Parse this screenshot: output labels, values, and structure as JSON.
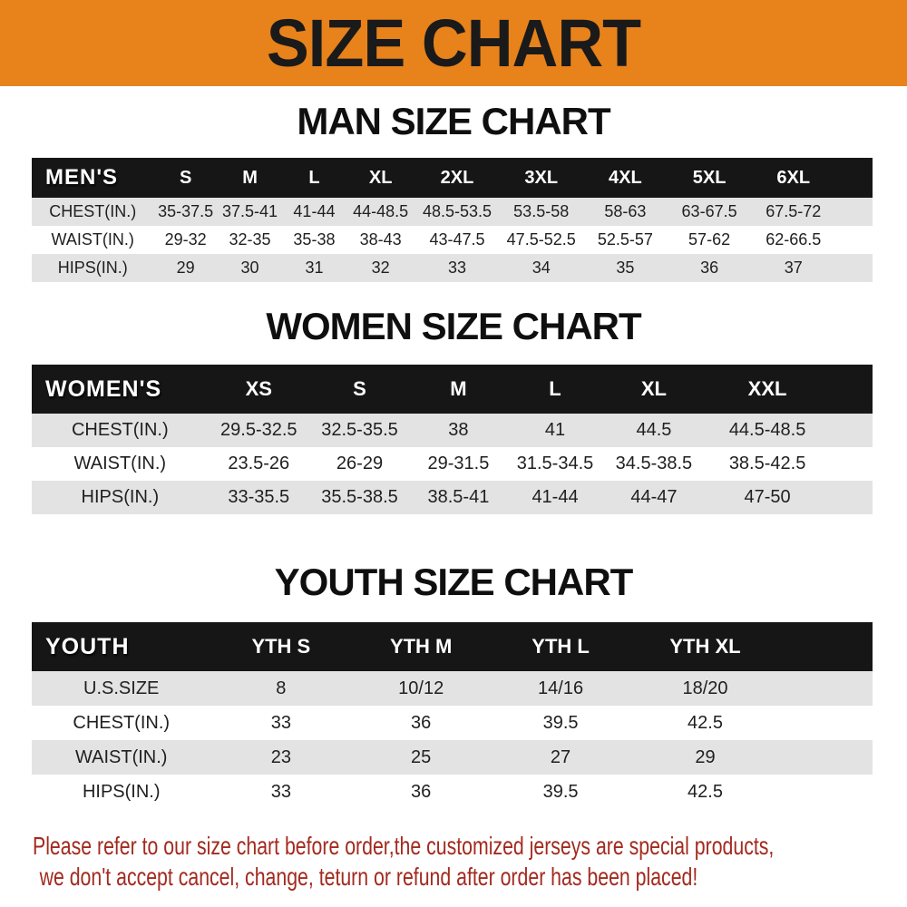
{
  "banner": {
    "title": "SIZE CHART"
  },
  "sections": [
    {
      "id": "men",
      "title": "MAN SIZE CHART",
      "header_label": "MEN'S",
      "columns": [
        "S",
        "M",
        "L",
        "XL",
        "2XL",
        "3XL",
        "4XL",
        "5XL",
        "6XL"
      ],
      "rows": [
        {
          "label": "CHEST(IN.)",
          "values": [
            "35-37.5",
            "37.5-41",
            "41-44",
            "44-48.5",
            "48.5-53.5",
            "53.5-58",
            "58-63",
            "63-67.5",
            "67.5-72"
          ]
        },
        {
          "label": "WAIST(IN.)",
          "values": [
            "29-32",
            "32-35",
            "35-38",
            "38-43",
            "43-47.5",
            "47.5-52.5",
            "52.5-57",
            "57-62",
            "62-66.5"
          ]
        },
        {
          "label": "HIPS(IN.)",
          "values": [
            "29",
            "30",
            "31",
            "32",
            "33",
            "34",
            "35",
            "36",
            "37"
          ]
        }
      ]
    },
    {
      "id": "women",
      "title": "WOMEN SIZE CHART",
      "header_label": "WOMEN'S",
      "columns": [
        "XS",
        "S",
        "M",
        "L",
        "XL",
        "XXL"
      ],
      "rows": [
        {
          "label": "CHEST(IN.)",
          "values": [
            "29.5-32.5",
            "32.5-35.5",
            "38",
            "41",
            "44.5",
            "44.5-48.5"
          ]
        },
        {
          "label": "WAIST(IN.)",
          "values": [
            "23.5-26",
            "26-29",
            "29-31.5",
            "31.5-34.5",
            "34.5-38.5",
            "38.5-42.5"
          ]
        },
        {
          "label": "HIPS(IN.)",
          "values": [
            "33-35.5",
            "35.5-38.5",
            "38.5-41",
            "41-44",
            "44-47",
            "47-50"
          ]
        }
      ]
    },
    {
      "id": "youth",
      "title": "YOUTH SIZE CHART",
      "header_label": "YOUTH",
      "columns": [
        "YTH S",
        "YTH M",
        "YTH L",
        "YTH XL"
      ],
      "rows": [
        {
          "label": "U.S.SIZE",
          "values": [
            "8",
            "10/12",
            "14/16",
            "18/20"
          ]
        },
        {
          "label": "CHEST(IN.)",
          "values": [
            "33",
            "36",
            "39.5",
            "42.5"
          ]
        },
        {
          "label": "WAIST(IN.)",
          "values": [
            "23",
            "25",
            "27",
            "29"
          ]
        },
        {
          "label": "HIPS(IN.)",
          "values": [
            "33",
            "36",
            "39.5",
            "42.5"
          ]
        }
      ]
    }
  ],
  "disclaimer": {
    "line1": "Please refer to our size chart before order,the customized jerseys are special products,",
    "line2": "we don't accept cancel, change, teturn or refund after order has been placed!"
  },
  "colors": {
    "banner_bg": "#E8821B",
    "bar_bg": "#161616",
    "bar_text": "#FFFFFF",
    "stripe": "#E3E3E3",
    "cell_text": "#1F1F1F",
    "title_text": "#0F0F0F",
    "disclaimer_color": "#A32A1F"
  }
}
